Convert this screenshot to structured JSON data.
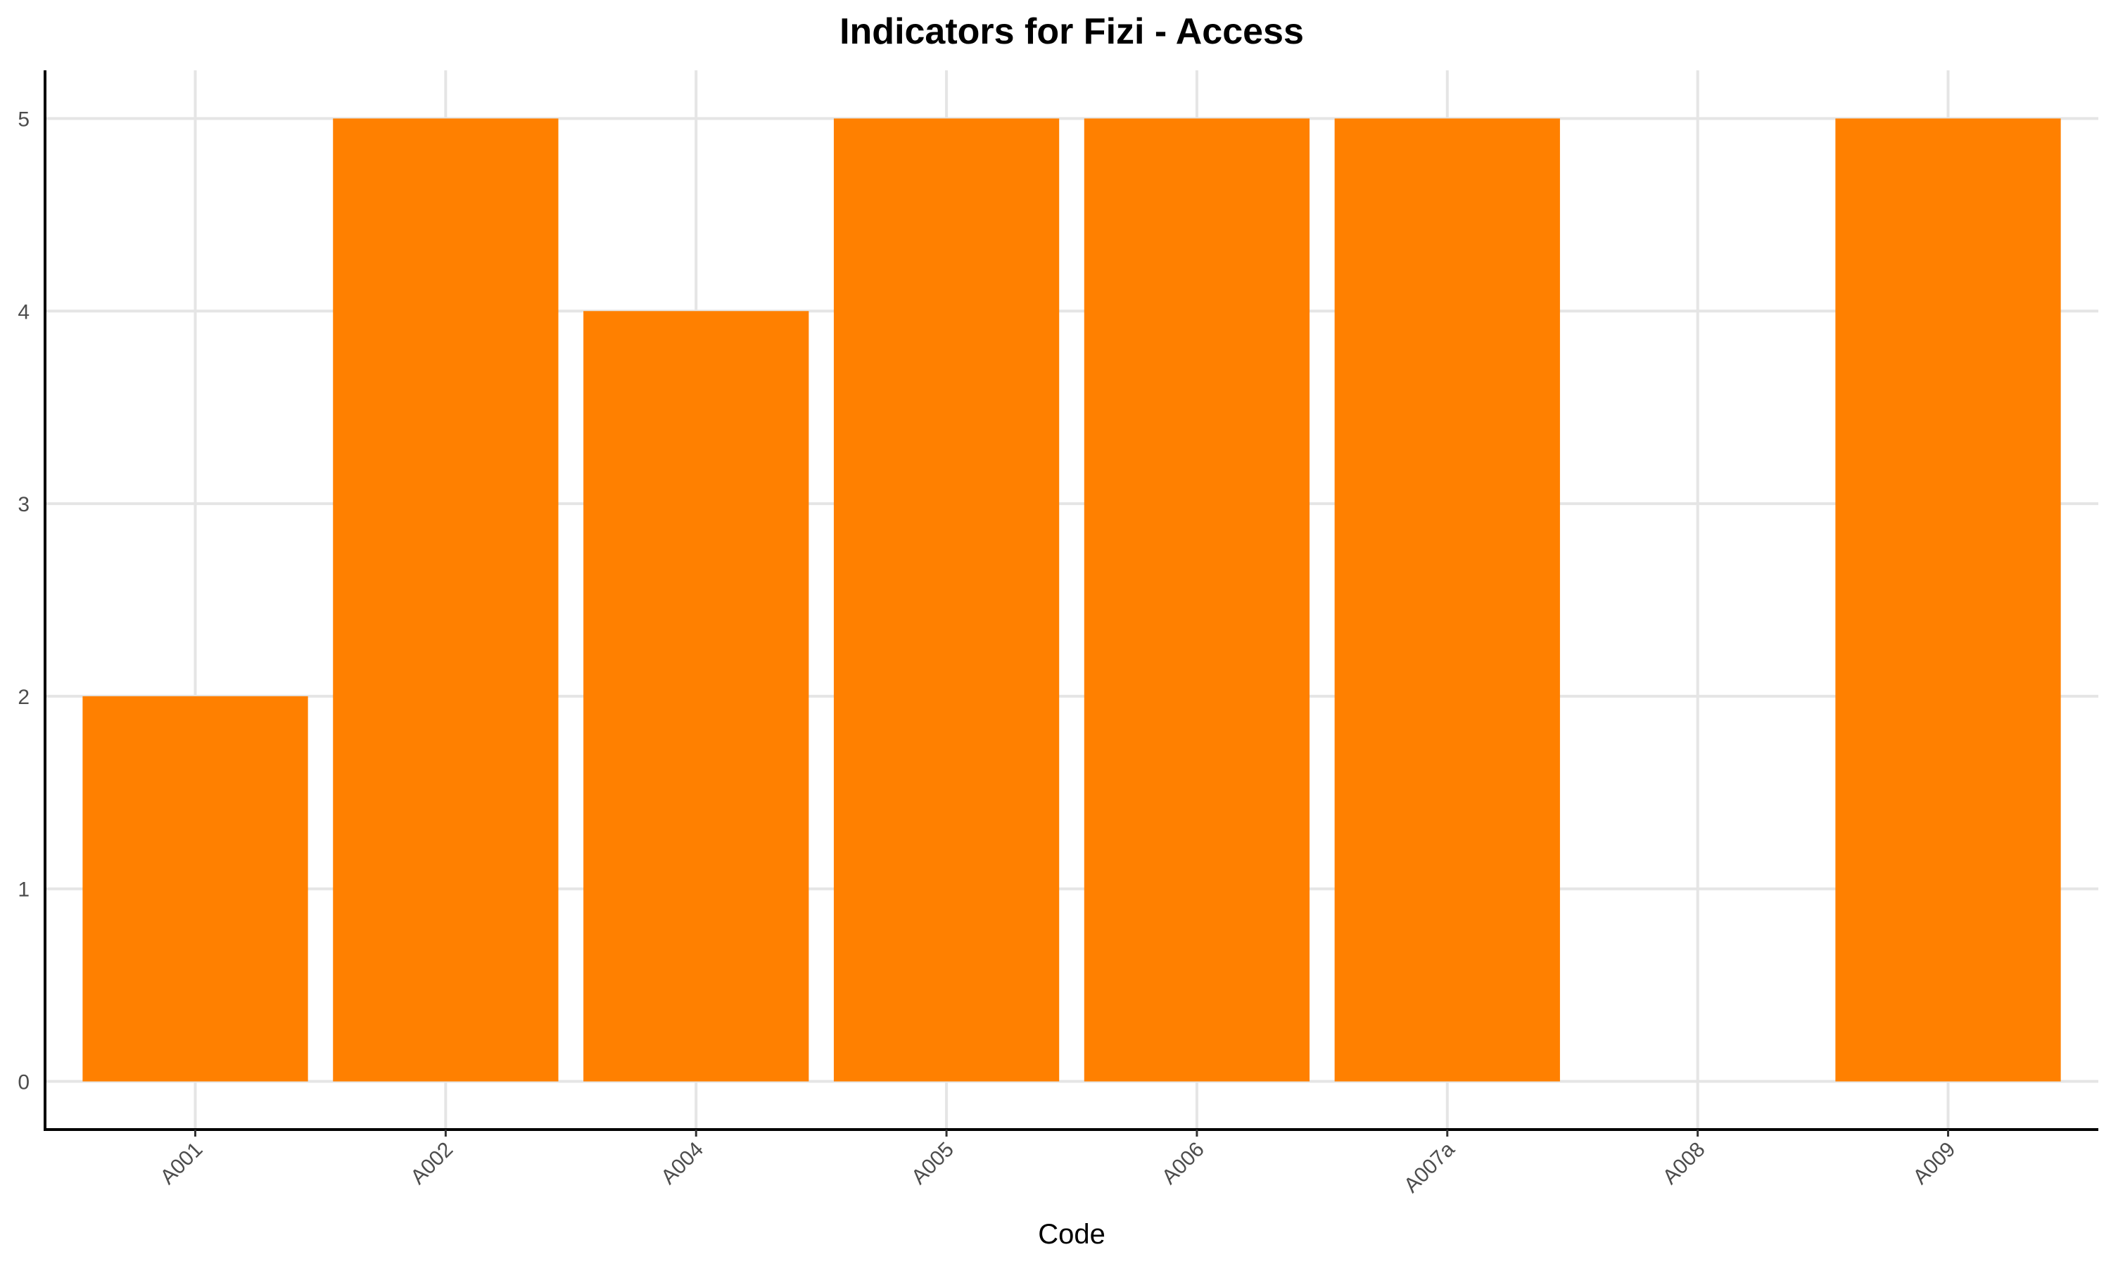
{
  "chart_data": {
    "type": "bar",
    "title": "Indicators for Fizi - Access",
    "xlabel": "Code",
    "ylabel": "",
    "categories": [
      "A001",
      "A002",
      "A004",
      "A005",
      "A006",
      "A007a",
      "A008",
      "A009"
    ],
    "values": [
      2,
      5,
      4,
      5,
      5,
      5,
      0,
      5
    ],
    "ylim": [
      -0.25,
      5.25
    ],
    "yticks": [
      "0",
      "1",
      "2",
      "3",
      "4",
      "5"
    ],
    "grid": true,
    "legend": "none",
    "colors": {
      "bar": "#FF8000",
      "grid": "#E5E5E5",
      "axis": "#000000"
    }
  }
}
